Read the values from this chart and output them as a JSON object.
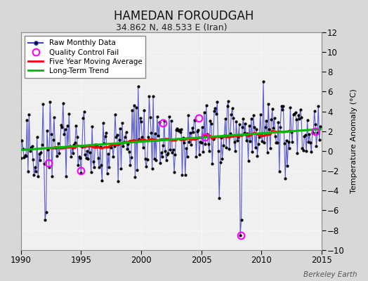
{
  "title": "HAMEDAN FOROUDGAH",
  "subtitle": "34.862 N, 48.533 E (Iran)",
  "ylabel": "Temperature Anomaly (°C)",
  "xlim": [
    1990,
    2015
  ],
  "ylim": [
    -10,
    12
  ],
  "yticks": [
    -10,
    -8,
    -6,
    -4,
    -2,
    0,
    2,
    4,
    6,
    8,
    10,
    12
  ],
  "xticks": [
    1990,
    1995,
    2000,
    2005,
    2010,
    2015
  ],
  "bg_color": "#d8d8d8",
  "plot_bg_color": "#f0f0f0",
  "grid_color": "#ffffff",
  "watermark": "Berkeley Earth",
  "raw_line_color": "#4040cc",
  "raw_marker_color": "#000000",
  "ma_color": "#ff0000",
  "trend_color": "#00bb00",
  "qc_color": "#ff00ff",
  "start_year": 1990,
  "end_year": 2015
}
